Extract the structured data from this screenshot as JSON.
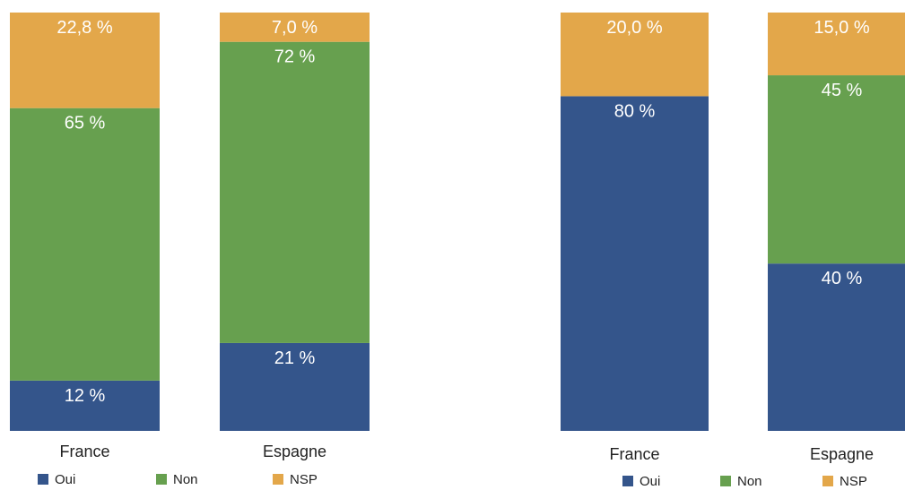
{
  "colors": {
    "Oui": "#34558b",
    "Non": "#67a04f",
    "NSP": "#e3a74a"
  },
  "chart_data": [
    {
      "type": "bar",
      "stacked": true,
      "categories": [
        "France",
        "Espagne"
      ],
      "series": [
        {
          "name": "Oui",
          "values": [
            12,
            21
          ],
          "labels": [
            "12 %",
            "21 %"
          ]
        },
        {
          "name": "Non",
          "values": [
            65,
            72
          ],
          "labels": [
            "65 %",
            "72 %"
          ]
        },
        {
          "name": "NSP",
          "values": [
            22.8,
            7.0
          ],
          "labels": [
            "22,8 %",
            "7,0 %"
          ]
        }
      ],
      "legend": [
        "Oui",
        "Non",
        "NSP"
      ],
      "legend_position": "bottom",
      "grid": false
    },
    {
      "type": "bar",
      "stacked": true,
      "categories": [
        "France",
        "Espagne"
      ],
      "series": [
        {
          "name": "Oui",
          "values": [
            80,
            40
          ],
          "labels": [
            "80 %",
            "40 %"
          ]
        },
        {
          "name": "Non",
          "values": [
            0,
            45
          ],
          "labels": [
            "",
            "45 %"
          ]
        },
        {
          "name": "NSP",
          "values": [
            20.0,
            15.0
          ],
          "labels": [
            "20,0 %",
            "15,0 %"
          ]
        }
      ],
      "legend": [
        "Oui",
        "Non",
        "NSP"
      ],
      "legend_position": "bottom",
      "grid": false
    }
  ]
}
